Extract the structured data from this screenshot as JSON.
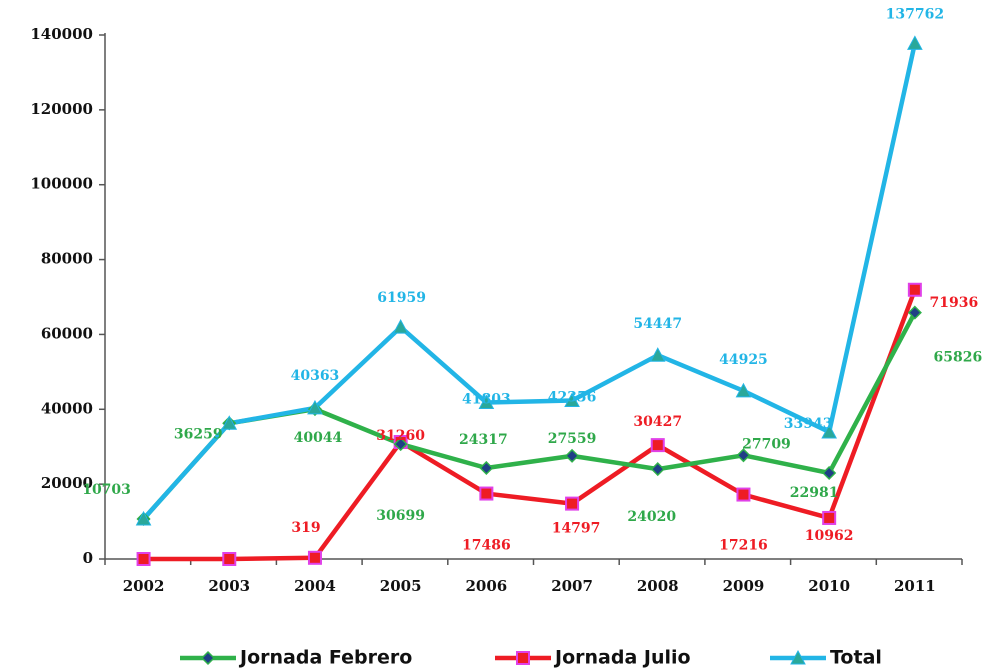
{
  "chart_data": {
    "type": "line",
    "categories": [
      "2002",
      "2003",
      "2004",
      "2005",
      "2006",
      "2007",
      "2008",
      "2009",
      "2010",
      "2011"
    ],
    "ylim": [
      0,
      140000
    ],
    "yticks": [
      0,
      20000,
      40000,
      60000,
      80000,
      100000,
      120000,
      140000
    ],
    "legend": "bottom",
    "series": [
      {
        "name": "Jornada Febrero",
        "color": "#2fb14a",
        "marker": "diamond",
        "values": [
          10703,
          36259,
          40044,
          30699,
          24317,
          27559,
          24020,
          27709,
          22981,
          65826
        ],
        "value_labels": [
          "10703",
          "36259",
          "40044",
          "30699",
          "24317",
          "27559",
          "24020",
          "27709",
          "22981",
          "65826"
        ]
      },
      {
        "name": "Jornada Julio",
        "color": "#ee1c24",
        "marker": "square",
        "values": [
          0,
          0,
          319,
          31260,
          17486,
          14797,
          30427,
          17216,
          10962,
          71936
        ],
        "value_labels": [
          null,
          null,
          "319",
          "31260",
          "17486",
          "14797",
          "30427",
          "17216",
          "10962",
          "71936"
        ]
      },
      {
        "name": "Total",
        "color": "#22b5e6",
        "marker": "triangle",
        "values": [
          10703,
          36259,
          40363,
          61959,
          41803,
          42356,
          54447,
          44925,
          33943,
          137762
        ],
        "value_labels": [
          null,
          null,
          "40363",
          "61959",
          "41803",
          "42356",
          "54447",
          "44925",
          "33943",
          "137762"
        ]
      }
    ]
  }
}
